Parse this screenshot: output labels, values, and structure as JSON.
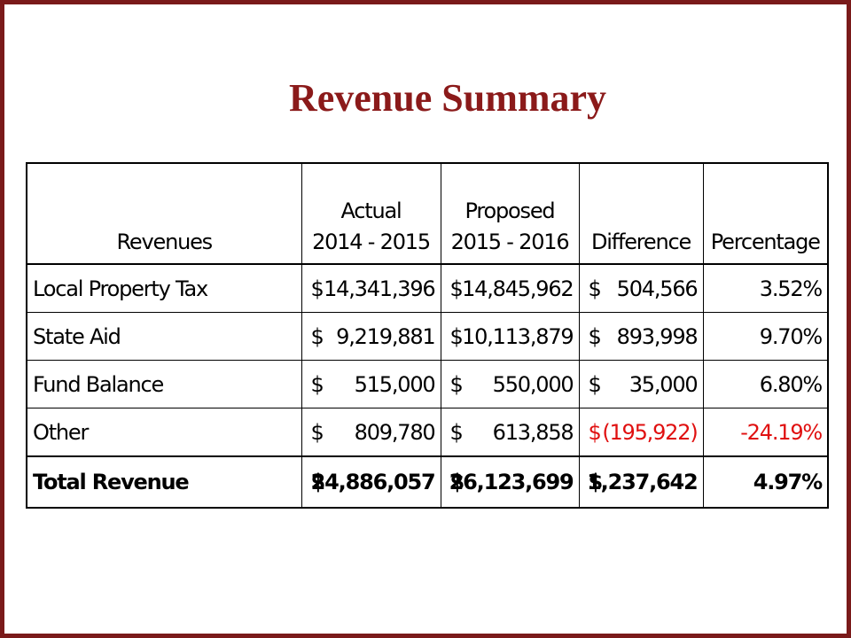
{
  "title": "Revenue Summary",
  "colors": {
    "frame": "#7a1a1a",
    "title": "#8b1a1a",
    "negative": "#e01010"
  },
  "table": {
    "headers": {
      "revenues": "Revenues",
      "actual_line1": "Actual",
      "actual_line2": "2014 - 2015",
      "proposed_line1": "Proposed",
      "proposed_line2": "2015 - 2016",
      "difference": "Difference",
      "percentage": "Percentage"
    },
    "rows": [
      {
        "label": "Local Property Tax",
        "actual_cur": "$",
        "actual": "14,341,396",
        "proposed_cur": "$",
        "proposed": "14,845,962",
        "diff_cur": "$",
        "diff": "504,566",
        "pct": "3.52%"
      },
      {
        "label": "State Aid",
        "actual_cur": "$",
        "actual": "9,219,881",
        "proposed_cur": "$",
        "proposed": "10,113,879",
        "diff_cur": "$",
        "diff": "893,998",
        "pct": "9.70%"
      },
      {
        "label": "Fund Balance",
        "actual_cur": "$",
        "actual": "515,000",
        "proposed_cur": "$",
        "proposed": "550,000",
        "diff_cur": "$",
        "diff": "35,000",
        "pct": "6.80%"
      },
      {
        "label": "Other",
        "actual_cur": "$",
        "actual": "809,780",
        "proposed_cur": "$",
        "proposed": "613,858",
        "diff_cur": "$",
        "diff": "(195,922)",
        "pct": "-24.19%"
      }
    ],
    "total": {
      "label": "Total Revenue",
      "actual_cur": "$",
      "actual": "24,886,057",
      "proposed_cur": "$",
      "proposed": "26,123,699",
      "diff_cur": "$",
      "diff": "1,237,642",
      "pct": "4.97%"
    }
  }
}
